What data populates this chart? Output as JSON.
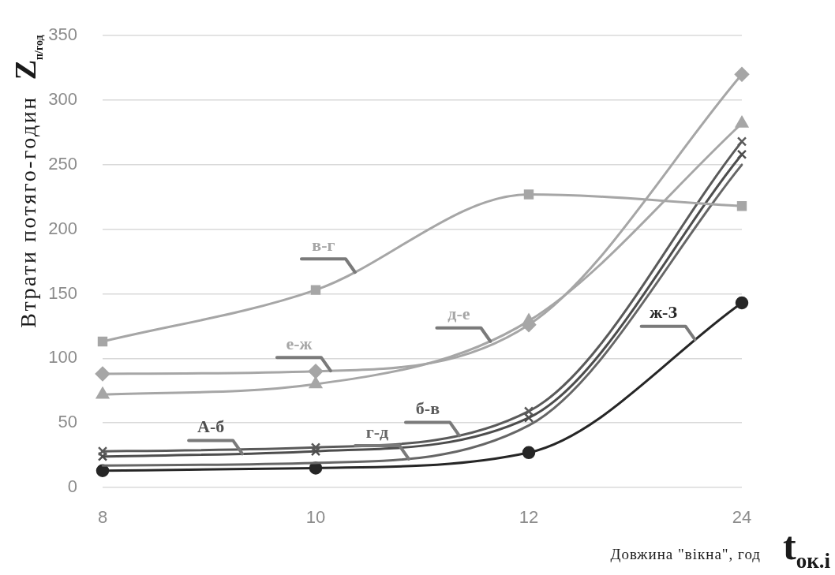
{
  "chart_data": {
    "type": "line",
    "xlabel": "Довжина \"вікна\", год t$_{ок.і}$",
    "ylabel": "Втрати потяго-годин Z$_{п/год}$",
    "categories": [
      "8",
      "10",
      "12",
      "24"
    ],
    "series": [
      {
        "name": "е-ж",
        "color": "#a6a6a6",
        "marker": "diamond",
        "values": [
          88,
          90,
          126,
          320
        ]
      },
      {
        "name": "в-г",
        "color": "#a6a6a6",
        "marker": "square",
        "values": [
          113,
          153,
          227,
          218
        ]
      },
      {
        "name": "д-е",
        "color": "#a6a6a6",
        "marker": "triangle",
        "values": [
          72,
          80,
          129,
          282
        ]
      },
      {
        "name": "б-в",
        "color": "#5a5a5a",
        "marker": "cross",
        "values": [
          28,
          31,
          59,
          268
        ]
      },
      {
        "name": "А-б",
        "color": "#4d4d4d",
        "marker": "cross",
        "values": [
          24,
          28,
          54,
          258
        ]
      },
      {
        "name": "г-д",
        "color": "#666666",
        "marker": "none",
        "values": [
          17,
          19,
          48,
          250
        ]
      },
      {
        "name": "ж-З",
        "color": "#262626",
        "marker": "circle",
        "values": [
          13,
          15,
          27,
          143
        ]
      }
    ],
    "ylim": [
      0,
      350
    ],
    "yticks": [
      0,
      50,
      100,
      150,
      200,
      250,
      300,
      350
    ],
    "grid": "y",
    "legend": false
  }
}
